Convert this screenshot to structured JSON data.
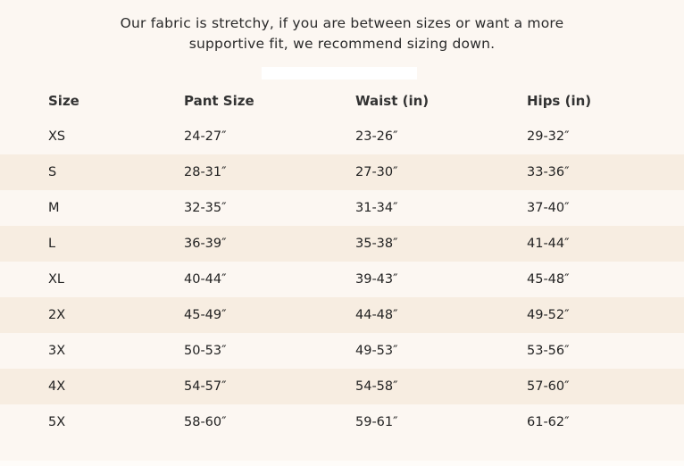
{
  "note": {
    "line1": "Our fabric is stretchy, if you are between sizes or want a more",
    "line2": "supportive fit, we recommend sizing down."
  },
  "table": {
    "headers": [
      "Size",
      "Pant Size",
      "Waist (in)",
      "Hips (in)"
    ],
    "rows": [
      [
        "XS",
        "24-27″",
        "23-26″",
        "29-32″"
      ],
      [
        "S",
        "28-31″",
        "27-30″",
        "33-36″"
      ],
      [
        "M",
        "32-35″",
        "31-34″",
        "37-40″"
      ],
      [
        "L",
        "36-39″",
        "35-38″",
        "41-44″"
      ],
      [
        "XL",
        "40-44″",
        "39-43″",
        "45-48″"
      ],
      [
        "2X",
        "45-49″",
        "44-48″",
        "49-52″"
      ],
      [
        "3X",
        "50-53″",
        "49-53″",
        "53-56″"
      ],
      [
        "4X",
        "54-57″",
        "54-58″",
        "57-60″"
      ],
      [
        "5X",
        "58-60″",
        "59-61″",
        "61-62″"
      ]
    ]
  },
  "colors": {
    "background": "#fcf7f2",
    "stripe": "#f7ede1"
  }
}
